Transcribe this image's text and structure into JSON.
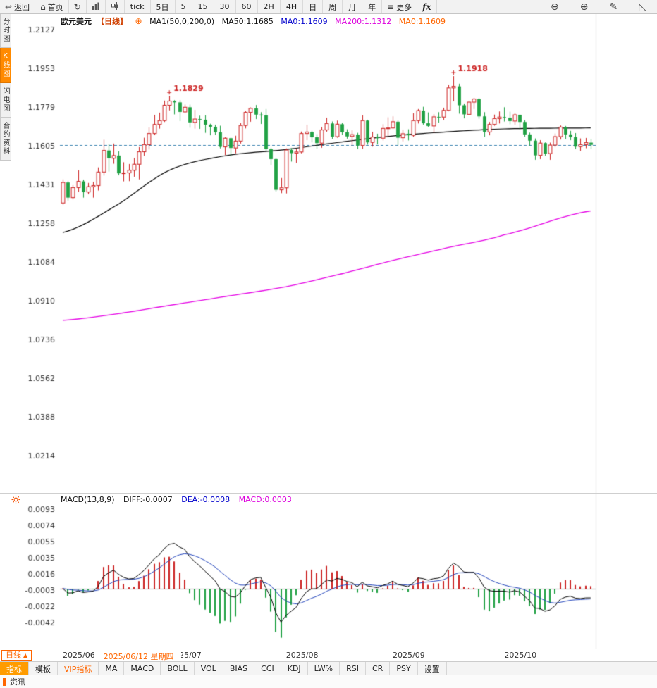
{
  "toolbar": {
    "back_label": "返回",
    "home_label": "首页",
    "more_label": "更多",
    "fx_label": "fx",
    "periods": [
      {
        "name": "tick",
        "label": "tick"
      },
      {
        "name": "5d",
        "label": "5日"
      },
      {
        "name": "5m",
        "label": "5"
      },
      {
        "name": "15m",
        "label": "15"
      },
      {
        "name": "30m",
        "label": "30"
      },
      {
        "name": "60m",
        "label": "60"
      },
      {
        "name": "2h",
        "label": "2H"
      },
      {
        "name": "4h",
        "label": "4H"
      },
      {
        "name": "day",
        "label": "日"
      },
      {
        "name": "week",
        "label": "周"
      },
      {
        "name": "month",
        "label": "月"
      },
      {
        "name": "year",
        "label": "年"
      }
    ]
  },
  "icons": {
    "back": "↩",
    "home": "⌂",
    "refresh": "↻",
    "more": "≡",
    "zoom_out": "⊖",
    "zoom_in": "⊕",
    "draw": "✎",
    "measure": "◺",
    "add": "⊕",
    "up_triangle": "▲"
  },
  "sidebar": {
    "items": [
      {
        "name": "time-chart",
        "label": "分时图",
        "active": false
      },
      {
        "name": "kline-chart",
        "label": "K线图",
        "active": true
      },
      {
        "name": "lightning-chart",
        "label": "闪电图",
        "active": false
      },
      {
        "name": "contract-info",
        "label": "合约资料",
        "active": false
      }
    ]
  },
  "legend": {
    "symbol": "欧元美元",
    "period_tag": "【日线】",
    "ma_settings": "MA1(50,0,200,0)",
    "ma50": "MA50:1.1685",
    "ma0_blue": "MA0:1.1609",
    "ma200": "MA200:1.1312",
    "ma0_orange": "MA0:1.1609"
  },
  "macd_legend": {
    "title": "MACD(13,8,9)",
    "diff": "DIFF:-0.0007",
    "dea": "DEA:-0.0008",
    "macd": "MACD:0.0003"
  },
  "status": {
    "period_label": "日线"
  },
  "tabs": {
    "items": [
      {
        "name": "indicator",
        "label": "指标",
        "style": "active"
      },
      {
        "name": "template",
        "label": "模板",
        "style": ""
      },
      {
        "name": "vip-indicator",
        "label": "VIP指标",
        "style": "vip"
      },
      {
        "name": "ma",
        "label": "MA",
        "style": ""
      },
      {
        "name": "macd",
        "label": "MACD",
        "style": ""
      },
      {
        "name": "boll",
        "label": "BOLL",
        "style": ""
      },
      {
        "name": "vol",
        "label": "VOL",
        "style": ""
      },
      {
        "name": "bias",
        "label": "BIAS",
        "style": ""
      },
      {
        "name": "cci",
        "label": "CCI",
        "style": ""
      },
      {
        "name": "kdj",
        "label": "KDJ",
        "style": ""
      },
      {
        "name": "lwr",
        "label": "LW%",
        "style": ""
      },
      {
        "name": "rsi",
        "label": "RSI",
        "style": ""
      },
      {
        "name": "cr",
        "label": "CR",
        "style": ""
      },
      {
        "name": "psy",
        "label": "PSY",
        "style": ""
      },
      {
        "name": "settings",
        "label": "设置",
        "style": ""
      }
    ]
  },
  "bottom": {
    "news_label": "资讯"
  },
  "chart_data": {
    "type": "candlestick",
    "symbol": "欧元美元",
    "period": "日线",
    "ylim": [
      1.0046,
      1.2165
    ],
    "price_ticks": [
      "1.2127",
      "1.1953",
      "1.1779",
      "1.1605",
      "1.1431",
      "1.1258",
      "1.1084",
      "1.0910",
      "1.0736",
      "1.0562",
      "1.0388",
      "1.0214"
    ],
    "last_price": 1.1609,
    "colors": {
      "up": "#cc2222",
      "down": "#1fa043",
      "ma50": "#000000",
      "ma200": "#e500e5",
      "accent": "#ff6600",
      "diff_line": "#000000",
      "dea_line": "#2244bb",
      "last_price_line": "#3d85b0"
    },
    "ohlc": [
      [
        1.1348,
        1.1454,
        1.134,
        1.144
      ],
      [
        1.144,
        1.1447,
        1.1359,
        1.1372
      ],
      [
        1.1372,
        1.1428,
        1.1364,
        1.1417
      ],
      [
        1.1417,
        1.1495,
        1.1398,
        1.1445
      ],
      [
        1.1445,
        1.1453,
        1.1372,
        1.1397
      ],
      [
        1.1397,
        1.1438,
        1.1387,
        1.1421
      ],
      [
        1.1421,
        1.1443,
        1.1372,
        1.1426
      ],
      [
        1.1426,
        1.1508,
        1.1404,
        1.1487
      ],
      [
        1.1487,
        1.1632,
        1.1471,
        1.1584
      ],
      [
        1.1584,
        1.1613,
        1.1489,
        1.1549
      ],
      [
        1.1549,
        1.1615,
        1.1524,
        1.1561
      ],
      [
        1.1561,
        1.158,
        1.1472,
        1.1481
      ],
      [
        1.1481,
        1.1531,
        1.1445,
        1.1483
      ],
      [
        1.1483,
        1.1523,
        1.1446,
        1.1495
      ],
      [
        1.1495,
        1.155,
        1.1466,
        1.1522
      ],
      [
        1.1522,
        1.1599,
        1.1454,
        1.1578
      ],
      [
        1.1578,
        1.1641,
        1.156,
        1.161
      ],
      [
        1.161,
        1.1687,
        1.1588,
        1.166
      ],
      [
        1.166,
        1.1744,
        1.1653,
        1.1701
      ],
      [
        1.1701,
        1.1754,
        1.1682,
        1.1718
      ],
      [
        1.1718,
        1.1808,
        1.1712,
        1.1787
      ],
      [
        1.1787,
        1.1829,
        1.1764,
        1.1806
      ],
      [
        1.1806,
        1.181,
        1.1746,
        1.18
      ],
      [
        1.18,
        1.181,
        1.1716,
        1.1757
      ],
      [
        1.1757,
        1.179,
        1.1752,
        1.1778
      ],
      [
        1.1778,
        1.179,
        1.1686,
        1.171
      ],
      [
        1.171,
        1.1766,
        1.1682,
        1.1725
      ],
      [
        1.1725,
        1.174,
        1.1681,
        1.1722
      ],
      [
        1.1722,
        1.1742,
        1.1663,
        1.17
      ],
      [
        1.17,
        1.1704,
        1.1652,
        1.169
      ],
      [
        1.169,
        1.17,
        1.1654,
        1.1666
      ],
      [
        1.1666,
        1.1695,
        1.1593,
        1.16
      ],
      [
        1.16,
        1.1643,
        1.1563,
        1.1639
      ],
      [
        1.1639,
        1.1641,
        1.1556,
        1.1595
      ],
      [
        1.1595,
        1.165,
        1.1571,
        1.1626
      ],
      [
        1.1626,
        1.1707,
        1.1615,
        1.1696
      ],
      [
        1.1696,
        1.1761,
        1.1683,
        1.1755
      ],
      [
        1.1755,
        1.1777,
        1.1713,
        1.1773
      ],
      [
        1.1773,
        1.1788,
        1.1725,
        1.1745
      ],
      [
        1.1745,
        1.1756,
        1.1703,
        1.1742
      ],
      [
        1.1742,
        1.177,
        1.158,
        1.159
      ],
      [
        1.159,
        1.1596,
        1.1519,
        1.1545
      ],
      [
        1.1545,
        1.1551,
        1.14,
        1.1407
      ],
      [
        1.1407,
        1.146,
        1.1392,
        1.1416
      ],
      [
        1.1416,
        1.1593,
        1.1391,
        1.1586
      ],
      [
        1.1586,
        1.1594,
        1.1534,
        1.1572
      ],
      [
        1.1572,
        1.1591,
        1.1528,
        1.1577
      ],
      [
        1.1577,
        1.1669,
        1.1571,
        1.166
      ],
      [
        1.166,
        1.1699,
        1.163,
        1.1667
      ],
      [
        1.1667,
        1.1672,
        1.162,
        1.1643
      ],
      [
        1.1643,
        1.1657,
        1.1592,
        1.1617
      ],
      [
        1.1617,
        1.1689,
        1.1596,
        1.1676
      ],
      [
        1.1676,
        1.1731,
        1.1668,
        1.1705
      ],
      [
        1.1705,
        1.1714,
        1.1636,
        1.1646
      ],
      [
        1.1646,
        1.1718,
        1.1641,
        1.1702
      ],
      [
        1.1702,
        1.1708,
        1.1654,
        1.1666
      ],
      [
        1.1666,
        1.1679,
        1.1637,
        1.1647
      ],
      [
        1.1647,
        1.1674,
        1.1606,
        1.1655
      ],
      [
        1.1655,
        1.1663,
        1.159,
        1.1606
      ],
      [
        1.1606,
        1.1742,
        1.1591,
        1.1718
      ],
      [
        1.1718,
        1.1722,
        1.161,
        1.162
      ],
      [
        1.162,
        1.1668,
        1.1601,
        1.1644
      ],
      [
        1.1644,
        1.1659,
        1.1611,
        1.1639
      ],
      [
        1.1639,
        1.1702,
        1.1629,
        1.1683
      ],
      [
        1.1683,
        1.1733,
        1.1643,
        1.1685
      ],
      [
        1.1685,
        1.1737,
        1.1682,
        1.1713
      ],
      [
        1.1713,
        1.1718,
        1.1607,
        1.1641
      ],
      [
        1.1641,
        1.1677,
        1.1625,
        1.1659
      ],
      [
        1.1659,
        1.1679,
        1.1629,
        1.1652
      ],
      [
        1.1652,
        1.1751,
        1.1645,
        1.1718
      ],
      [
        1.1718,
        1.177,
        1.1705,
        1.1763
      ],
      [
        1.1763,
        1.178,
        1.17,
        1.1706
      ],
      [
        1.1706,
        1.1755,
        1.169,
        1.1694
      ],
      [
        1.1694,
        1.1747,
        1.1663,
        1.1735
      ],
      [
        1.1735,
        1.1756,
        1.1709,
        1.1734
      ],
      [
        1.1734,
        1.1776,
        1.1721,
        1.1764
      ],
      [
        1.1764,
        1.1879,
        1.176,
        1.1865
      ],
      [
        1.1865,
        1.1918,
        1.1805,
        1.1872
      ],
      [
        1.1872,
        1.1884,
        1.1749,
        1.1787
      ],
      [
        1.1787,
        1.1795,
        1.1728,
        1.1746
      ],
      [
        1.1746,
        1.1808,
        1.1744,
        1.1801
      ],
      [
        1.1801,
        1.182,
        1.177,
        1.1815
      ],
      [
        1.1815,
        1.1819,
        1.1726,
        1.1737
      ],
      [
        1.1737,
        1.1756,
        1.1645,
        1.1667
      ],
      [
        1.1667,
        1.1712,
        1.1652,
        1.1701
      ],
      [
        1.1701,
        1.1745,
        1.1695,
        1.1727
      ],
      [
        1.1727,
        1.1759,
        1.1705,
        1.1734
      ],
      [
        1.1734,
        1.1778,
        1.1714,
        1.1731
      ],
      [
        1.1731,
        1.1758,
        1.1702,
        1.1716
      ],
      [
        1.1716,
        1.1752,
        1.17,
        1.1744
      ],
      [
        1.1744,
        1.1745,
        1.1679,
        1.1712
      ],
      [
        1.1712,
        1.172,
        1.1646,
        1.1656
      ],
      [
        1.1656,
        1.1664,
        1.1606,
        1.1628
      ],
      [
        1.1628,
        1.1638,
        1.1542,
        1.1562
      ],
      [
        1.1562,
        1.163,
        1.1545,
        1.1617
      ],
      [
        1.1617,
        1.162,
        1.156,
        1.157
      ],
      [
        1.157,
        1.1619,
        1.1542,
        1.1608
      ],
      [
        1.1608,
        1.166,
        1.1599,
        1.1646
      ],
      [
        1.1646,
        1.1696,
        1.1633,
        1.1689
      ],
      [
        1.1689,
        1.1694,
        1.1635,
        1.1656
      ],
      [
        1.1656,
        1.1672,
        1.163,
        1.1644
      ],
      [
        1.1644,
        1.1662,
        1.159,
        1.1601
      ],
      [
        1.1601,
        1.1638,
        1.1582,
        1.161
      ],
      [
        1.161,
        1.164,
        1.1594,
        1.1619
      ],
      [
        1.1619,
        1.1636,
        1.159,
        1.1609
      ]
    ],
    "ma50_anchors": [
      [
        0,
        1.1215
      ],
      [
        10,
        1.133
      ],
      [
        21,
        1.1495
      ],
      [
        32,
        1.156
      ],
      [
        44,
        1.1588
      ],
      [
        55,
        1.1622
      ],
      [
        65,
        1.1649
      ],
      [
        76,
        1.1668
      ],
      [
        87,
        1.1681
      ],
      [
        104,
        1.1685
      ]
    ],
    "ma200_anchors": [
      [
        0,
        1.0821
      ],
      [
        10,
        1.0848
      ],
      [
        21,
        1.0888
      ],
      [
        32,
        1.0928
      ],
      [
        44,
        1.0972
      ],
      [
        55,
        1.103
      ],
      [
        65,
        1.109
      ],
      [
        76,
        1.1148
      ],
      [
        87,
        1.1205
      ],
      [
        104,
        1.1312
      ]
    ],
    "annotations": [
      {
        "index": 21,
        "price": 1.1829,
        "label": "1.1829"
      },
      {
        "index": 77,
        "price": 1.1918,
        "label": "1.1918"
      }
    ],
    "month_labels": [
      {
        "index": 0,
        "label": "2025/06"
      },
      {
        "index": 21,
        "label": "2025/07"
      },
      {
        "index": 44,
        "label": "2025/08"
      },
      {
        "index": 65,
        "label": "2025/09"
      },
      {
        "index": 87,
        "label": "2025/10"
      }
    ],
    "selected": {
      "index": 8,
      "label": "2025/06/12 星期四"
    },
    "macd": {
      "params": [
        13,
        8,
        9
      ],
      "ylim": [
        -0.007,
        0.0097
      ],
      "ticks": [
        "0.0093",
        "0.0074",
        "0.0055",
        "0.0035",
        "0.0016",
        "-0.0003",
        "-0.0022",
        "-0.0042"
      ]
    }
  }
}
